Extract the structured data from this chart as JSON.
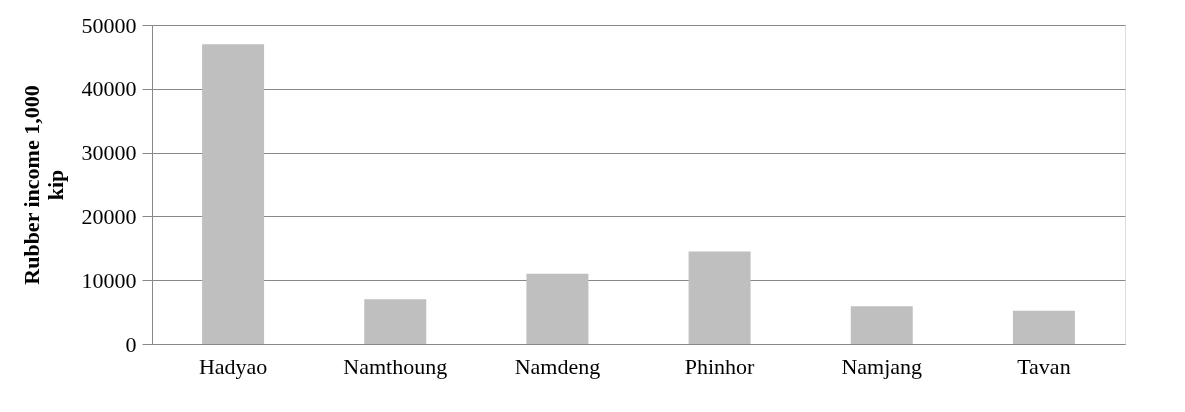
{
  "chart_data": {
    "type": "bar",
    "ylabel": "Rubber income 1,000 kip",
    "categories": [
      "Hadyao",
      "Namthoung",
      "Namdeng",
      "Phinhor",
      "Namjang",
      "Tavan"
    ],
    "values": [
      47000,
      7000,
      11000,
      14500,
      5900,
      5200
    ],
    "color": "#bfbfbf",
    "ylim": [
      0,
      50000
    ],
    "yticks": [
      0,
      10000,
      20000,
      30000,
      40000,
      50000
    ],
    "grid": "y"
  }
}
